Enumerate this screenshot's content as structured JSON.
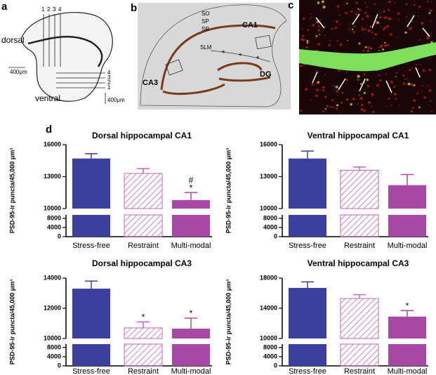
{
  "panels": {
    "a": {
      "label": "a",
      "dorsal": "dorsal",
      "ventral": "ventral",
      "top_lines": [
        "1",
        "2",
        "3",
        "4"
      ],
      "right_lines": [
        "4",
        "3",
        "2",
        "1"
      ],
      "scale_bars": [
        "400μm",
        "400μm"
      ]
    },
    "b": {
      "label": "b",
      "layers": [
        "SO",
        "SP",
        "SR",
        "SLM"
      ],
      "regions": [
        "CA1",
        "CA3",
        "DG"
      ],
      "marks": [
        "*",
        "*",
        "*"
      ]
    },
    "c": {
      "label": "c"
    },
    "d": {
      "label": "d"
    }
  },
  "chart_data": [
    {
      "type": "bar",
      "title": "Dorsal hippocampal CA1",
      "y_label": "PSD-95-ir puncta/45,000 μm³",
      "categories": [
        "Stress-free",
        "Restraint",
        "Multi-modal"
      ],
      "values": [
        14700,
        13300,
        10800
      ],
      "errors": [
        450,
        450,
        700
      ],
      "colors": [
        "#3b3f9e",
        "#c465b8",
        "#a849a6"
      ],
      "patterns": [
        "solid",
        "hatch",
        "solid"
      ],
      "annotations": [
        null,
        null,
        [
          "#",
          "*"
        ]
      ],
      "ylim": [
        0,
        16000
      ],
      "ybreak": [
        9500,
        10000
      ],
      "yticks": [
        0,
        4000,
        8000,
        10000,
        13000,
        16000
      ]
    },
    {
      "type": "bar",
      "title": "Ventral hippocampal CA1",
      "y_label": "PSD-95-ir puncta/45,000 μm³",
      "categories": [
        "Stress-free",
        "Restraint",
        "Multi-modal"
      ],
      "values": [
        14700,
        13600,
        12200
      ],
      "errors": [
        700,
        300,
        1000
      ],
      "colors": [
        "#3b3f9e",
        "#c465b8",
        "#a849a6"
      ],
      "patterns": [
        "solid",
        "hatch",
        "solid"
      ],
      "annotations": [
        null,
        null,
        null
      ],
      "ylim": [
        0,
        16000
      ],
      "ybreak": [
        9500,
        10000
      ],
      "yticks": [
        0,
        4000,
        8000,
        10000,
        13000,
        16000
      ]
    },
    {
      "type": "bar",
      "title": "Dorsal hippocampal CA3",
      "y_label": "PSD-95-ir puncta/45,000 μm³",
      "categories": [
        "Stress-free",
        "Restraint",
        "Multi-modal"
      ],
      "values": [
        13300,
        10700,
        10650
      ],
      "errors": [
        500,
        400,
        700
      ],
      "colors": [
        "#3b3f9e",
        "#c465b8",
        "#a849a6"
      ],
      "patterns": [
        "solid",
        "hatch",
        "solid"
      ],
      "annotations": [
        null,
        [
          "*"
        ],
        [
          "*"
        ]
      ],
      "ylim": [
        0,
        14000
      ],
      "ybreak": [
        9500,
        10000
      ],
      "yticks": [
        0,
        4000,
        8000,
        10000,
        12000,
        14000
      ]
    },
    {
      "type": "bar",
      "title": "Ventral hippocampal CA3",
      "y_label": "PSD-95-ir puncta/45,000 μm³",
      "categories": [
        "Stress-free",
        "Restraint",
        "Multi-modal"
      ],
      "values": [
        16700,
        15300,
        12900
      ],
      "errors": [
        800,
        500,
        800
      ],
      "colors": [
        "#3b3f9e",
        "#c465b8",
        "#a849a6"
      ],
      "patterns": [
        "solid",
        "hatch",
        "solid"
      ],
      "annotations": [
        null,
        null,
        [
          "*"
        ]
      ],
      "ylim": [
        0,
        18000
      ],
      "ybreak": [
        9500,
        10000
      ],
      "yticks": [
        0,
        4000,
        8000,
        10000,
        14000,
        18000
      ]
    }
  ]
}
